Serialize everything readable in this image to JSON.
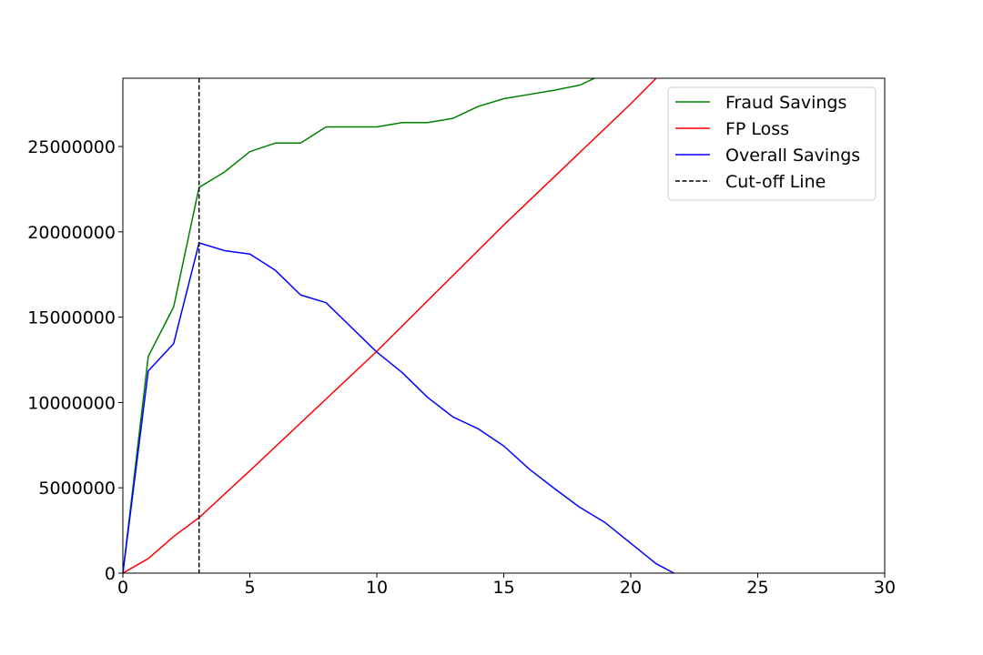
{
  "chart_data": {
    "type": "line",
    "title": "",
    "xlabel": "",
    "ylabel": "",
    "xlim": [
      0,
      30
    ],
    "ylim": [
      0,
      29000000
    ],
    "xticks": [
      "0",
      "5",
      "10",
      "15",
      "20",
      "25",
      "30"
    ],
    "yticks": [
      "0",
      "5000000",
      "10000000",
      "15000000",
      "20000000",
      "25000000"
    ],
    "grid": false,
    "legend_position": "top-right",
    "series": [
      {
        "name": "Fraud Savings",
        "color": "#008000",
        "style": "solid",
        "x": [
          0,
          1,
          2,
          3,
          4,
          5,
          6,
          7,
          8,
          9,
          10,
          11,
          12,
          13,
          14,
          15,
          16,
          17,
          18,
          19,
          20
        ],
        "y": [
          0,
          12700000,
          15600000,
          22600000,
          23500000,
          24700000,
          25200000,
          25200000,
          26150000,
          26150000,
          26150000,
          26400000,
          26400000,
          26650000,
          27350000,
          27800000,
          28050000,
          28300000,
          28600000,
          29300000,
          29900000
        ]
      },
      {
        "name": "FP Loss",
        "color": "#ff0000",
        "style": "solid",
        "x": [
          0,
          1,
          2,
          3,
          5,
          10,
          15,
          20,
          22
        ],
        "y": [
          0,
          850000,
          2150000,
          3250000,
          6000000,
          13000000,
          20400000,
          27500000,
          30500000
        ]
      },
      {
        "name": "Overall Savings",
        "color": "#0000ff",
        "style": "solid",
        "x": [
          0,
          1,
          2,
          3,
          4,
          5,
          6,
          7,
          8,
          9,
          10,
          11,
          12,
          13,
          14,
          15,
          16,
          17,
          18,
          19,
          20,
          21,
          21.7
        ],
        "y": [
          0,
          11850000,
          13450000,
          19350000,
          18900000,
          18700000,
          17750000,
          16300000,
          15850000,
          14400000,
          12950000,
          11750000,
          10300000,
          9150000,
          8450000,
          7450000,
          6100000,
          4950000,
          3850000,
          2950000,
          1750000,
          550000,
          0
        ]
      }
    ],
    "vlines": [
      {
        "name": "Cut-off Line",
        "x": 3,
        "color": "#000000",
        "style": "dashed"
      }
    ]
  }
}
